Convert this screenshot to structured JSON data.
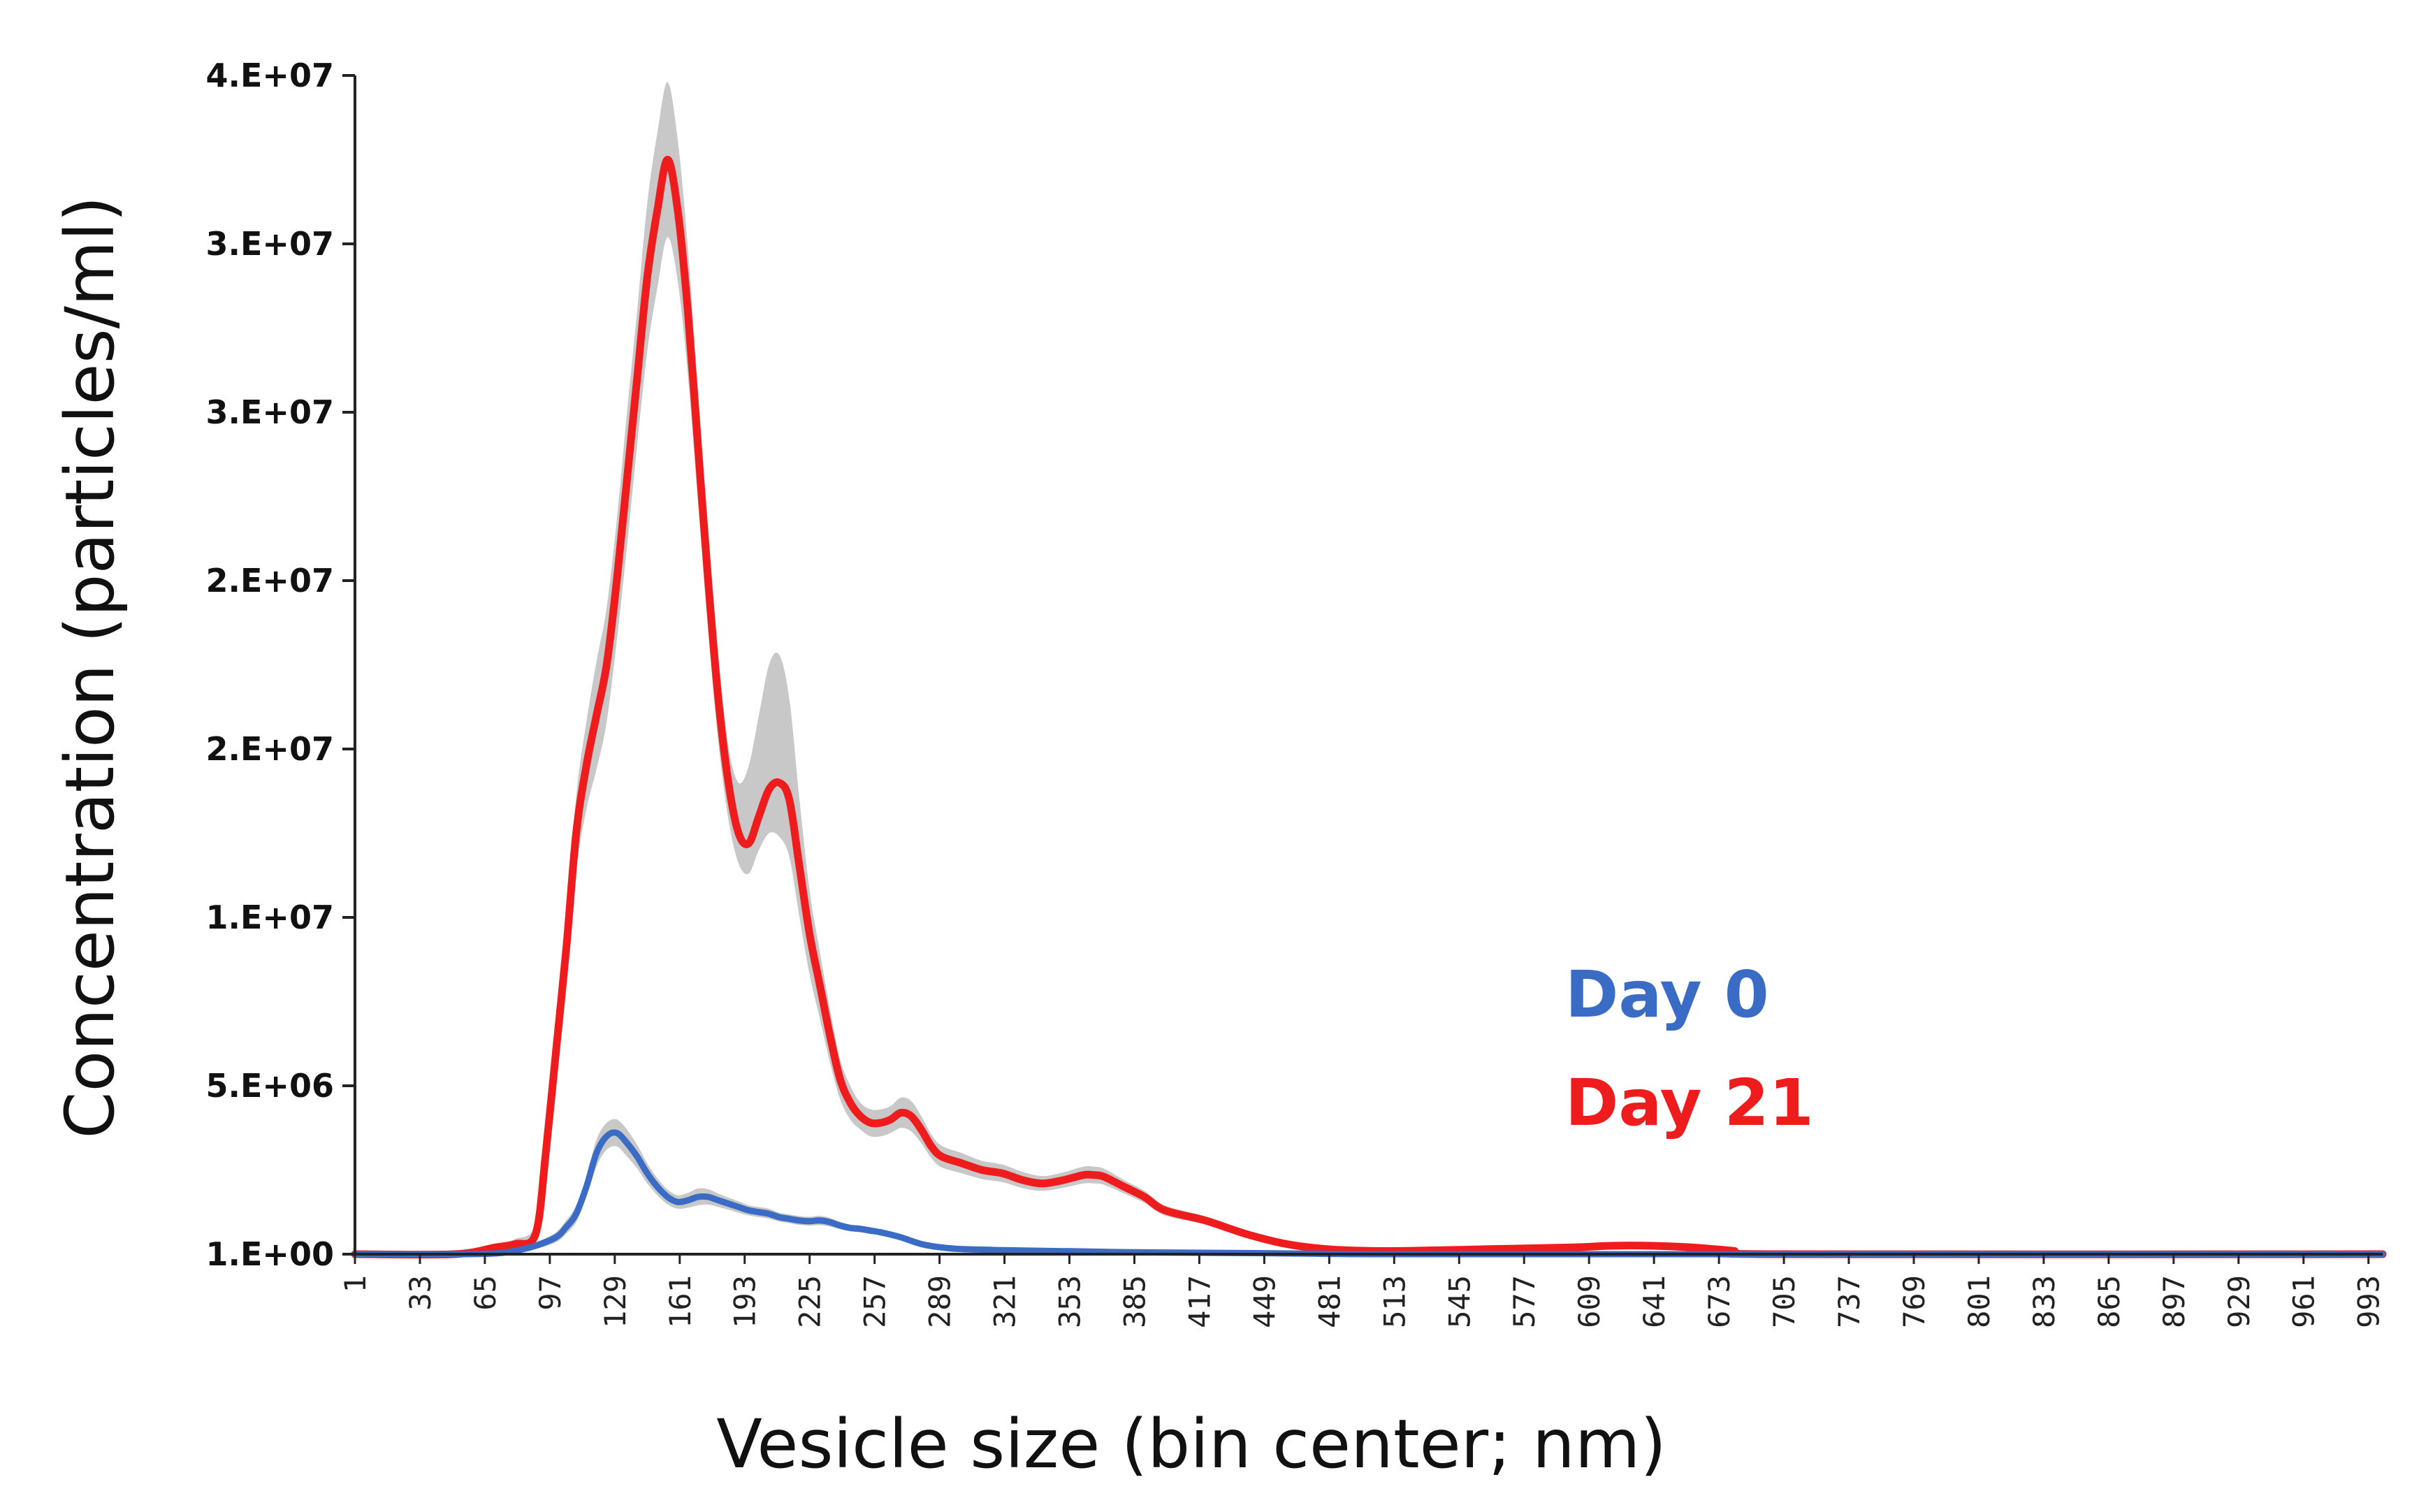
{
  "chart_data": {
    "type": "line",
    "title": "",
    "xlabel": "Vesicle size (bin center; nm)",
    "ylabel": "Concentration (particles/ml)",
    "xlim": [
      1,
      1000
    ],
    "ylim": [
      0,
      35000000
    ],
    "x_tick_labels": [
      "1",
      "33",
      "65",
      "97",
      "129",
      "161",
      "193",
      "225",
      "257",
      "289",
      "321",
      "353",
      "385",
      "417",
      "449",
      "481",
      "513",
      "545",
      "577",
      "609",
      "641",
      "673",
      "705",
      "737",
      "769",
      "801",
      "833",
      "865",
      "897",
      "929",
      "961",
      "993"
    ],
    "y_ticks": [
      {
        "value": 0,
        "label": "1.E+00"
      },
      {
        "value": 5000000,
        "label": "5.E+06"
      },
      {
        "value": 10000000,
        "label": "1.E+07"
      },
      {
        "value": 15000000,
        "label": "2.E+07"
      },
      {
        "value": 20000000,
        "label": "2.E+07"
      },
      {
        "value": 25000000,
        "label": "3.E+07"
      },
      {
        "value": 30000000,
        "label": "3.E+07"
      },
      {
        "value": 35000000,
        "label": "4.E+07"
      }
    ],
    "grid": false,
    "legend_position": "center-right",
    "series": [
      {
        "name": "Day 0",
        "color": "#3a6cc6",
        "band_color": "#c8c8c8",
        "x": [
          1,
          50,
          70,
          80,
          90,
          100,
          105,
          110,
          115,
          120,
          125,
          130,
          135,
          140,
          145,
          150,
          155,
          160,
          165,
          170,
          175,
          180,
          185,
          190,
          195,
          200,
          205,
          210,
          215,
          220,
          225,
          230,
          235,
          240,
          245,
          250,
          255,
          260,
          270,
          280,
          290,
          300,
          320,
          340,
          360,
          380,
          400,
          450,
          500,
          600,
          700,
          800,
          900,
          1000
        ],
        "values": [
          0,
          0,
          20000,
          100000,
          250000,
          500000,
          800000,
          1200000,
          2000000,
          3000000,
          3500000,
          3600000,
          3300000,
          2900000,
          2400000,
          2000000,
          1700000,
          1550000,
          1600000,
          1700000,
          1700000,
          1600000,
          1500000,
          1400000,
          1300000,
          1250000,
          1200000,
          1100000,
          1050000,
          1000000,
          980000,
          1000000,
          950000,
          850000,
          780000,
          750000,
          700000,
          650000,
          500000,
          300000,
          200000,
          150000,
          120000,
          100000,
          80000,
          60000,
          50000,
          30000,
          0,
          0,
          0,
          0,
          0,
          0
        ],
        "band_lower": [
          0,
          0,
          0,
          50000,
          150000,
          350000,
          600000,
          950000,
          1700000,
          2600000,
          3100000,
          3200000,
          2900000,
          2550000,
          2100000,
          1750000,
          1480000,
          1350000,
          1380000,
          1450000,
          1470000,
          1400000,
          1320000,
          1230000,
          1150000,
          1100000,
          1050000,
          970000,
          920000,
          870000,
          850000,
          860000,
          820000,
          740000,
          680000,
          650000,
          600000,
          560000,
          420000,
          240000,
          150000,
          110000,
          90000,
          70000,
          50000,
          40000,
          30000,
          10000,
          0,
          0,
          0,
          0,
          0,
          0
        ],
        "band_upper": [
          0,
          0,
          50000,
          150000,
          350000,
          650000,
          1000000,
          1450000,
          2300000,
          3400000,
          3900000,
          4000000,
          3700000,
          3250000,
          2700000,
          2250000,
          1920000,
          1750000,
          1820000,
          1950000,
          1930000,
          1800000,
          1680000,
          1570000,
          1450000,
          1400000,
          1350000,
          1230000,
          1180000,
          1130000,
          1110000,
          1140000,
          1080000,
          960000,
          880000,
          850000,
          800000,
          740000,
          580000,
          360000,
          250000,
          190000,
          150000,
          130000,
          110000,
          80000,
          70000,
          50000,
          0,
          0,
          0,
          0,
          0,
          0
        ]
      },
      {
        "name": "Day 21",
        "color": "#ee1c1c",
        "band_color": "#c8c8c8",
        "x": [
          1,
          50,
          70,
          80,
          90,
          95,
          100,
          105,
          110,
          115,
          120,
          125,
          130,
          135,
          140,
          145,
          150,
          155,
          160,
          165,
          170,
          175,
          180,
          185,
          190,
          195,
          200,
          205,
          210,
          215,
          220,
          225,
          230,
          235,
          240,
          245,
          250,
          255,
          260,
          265,
          270,
          275,
          280,
          285,
          290,
          300,
          310,
          320,
          330,
          340,
          350,
          360,
          365,
          370,
          380,
          390,
          400,
          420,
          440,
          460,
          480,
          500,
          520,
          560,
          600,
          620,
          640,
          660,
          680,
          700,
          1000
        ],
        "values": [
          0,
          0,
          200000,
          300000,
          600000,
          3000000,
          6000000,
          9000000,
          12500000,
          14500000,
          16000000,
          17500000,
          20000000,
          23000000,
          26000000,
          29000000,
          31000000,
          32500000,
          31000000,
          28000000,
          24000000,
          20000000,
          16500000,
          14000000,
          12500000,
          12200000,
          13000000,
          13800000,
          14000000,
          13500000,
          11500000,
          9500000,
          8000000,
          6500000,
          5200000,
          4500000,
          4100000,
          3900000,
          3900000,
          4000000,
          4200000,
          4100000,
          3700000,
          3200000,
          2900000,
          2700000,
          2500000,
          2400000,
          2200000,
          2100000,
          2200000,
          2350000,
          2350000,
          2300000,
          2000000,
          1700000,
          1300000,
          1000000,
          600000,
          300000,
          150000,
          100000,
          100000,
          150000,
          200000,
          250000,
          250000,
          200000,
          100000,
          0,
          0
        ],
        "band_lower": [
          0,
          0,
          100000,
          150000,
          300000,
          2600000,
          5400000,
          8200000,
          11400000,
          13200000,
          14400000,
          15800000,
          18200000,
          21000000,
          24000000,
          26800000,
          28700000,
          30200000,
          28900000,
          26100000,
          22300000,
          18500000,
          15200000,
          12900000,
          11600000,
          11300000,
          12000000,
          12500000,
          12400000,
          11800000,
          10000000,
          8300000,
          7000000,
          5700000,
          4600000,
          4000000,
          3700000,
          3500000,
          3500000,
          3600000,
          3750000,
          3650000,
          3300000,
          2850000,
          2580000,
          2400000,
          2230000,
          2140000,
          1960000,
          1880000,
          1970000,
          2100000,
          2100000,
          2060000,
          1800000,
          1520000,
          1150000,
          880000,
          520000,
          250000,
          120000,
          80000,
          80000,
          120000,
          160000,
          200000,
          200000,
          160000,
          80000,
          0,
          0
        ],
        "band_upper": [
          0,
          0,
          300000,
          450000,
          900000,
          3400000,
          6600000,
          9800000,
          13600000,
          15800000,
          17600000,
          19200000,
          21800000,
          25000000,
          28000000,
          31200000,
          33300000,
          34800000,
          33100000,
          29900000,
          25700000,
          21500000,
          17800000,
          15100000,
          14000000,
          14500000,
          16000000,
          17500000,
          17800000,
          16500000,
          13500000,
          10800000,
          9000000,
          7300000,
          5800000,
          5000000,
          4500000,
          4300000,
          4300000,
          4400000,
          4650000,
          4550000,
          4100000,
          3550000,
          3220000,
          3000000,
          2770000,
          2660000,
          2440000,
          2320000,
          2430000,
          2600000,
          2600000,
          2540000,
          2200000,
          1880000,
          1450000,
          1120000,
          680000,
          350000,
          180000,
          120000,
          120000,
          180000,
          240000,
          300000,
          300000,
          240000,
          120000,
          0,
          0
        ]
      }
    ]
  }
}
